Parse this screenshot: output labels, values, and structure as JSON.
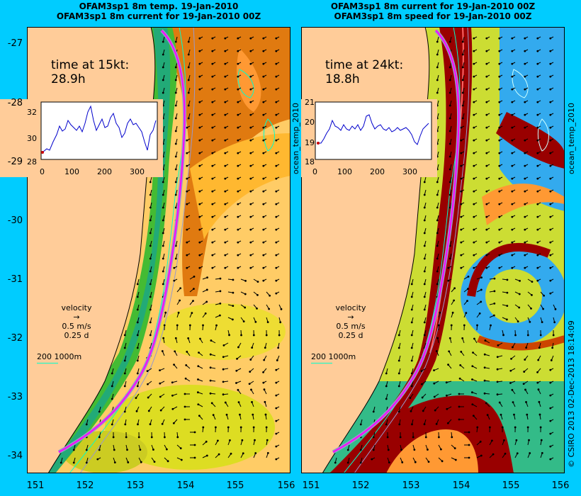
{
  "left_panel": {
    "title_line1": "OFAM3sp1 8m temp. 19-Jan-2010",
    "title_line2": "OFAM3sp1 8m current for 19-Jan-2010 00Z",
    "time_label": "time at 15kt:",
    "time_value": "28.9h",
    "inset": {
      "y_ticks": [
        "32",
        "30",
        "28"
      ],
      "x_ticks": [
        "0",
        "100",
        "200",
        "300"
      ]
    },
    "velocity_label": "velocity",
    "velocity_scale": "0.5 m/s",
    "velocity_time": "0.25 d",
    "depth_contours": "200  1000m"
  },
  "right_panel": {
    "title_line1": "OFAM3sp1 8m current for 19-Jan-2010 00Z",
    "title_line2": "OFAM3sp1 8m speed for 19-Jan-2010 00Z",
    "time_label": "time at 24kt:",
    "time_value": "18.8h",
    "inset": {
      "y_ticks": [
        "21",
        "20",
        "19",
        "18"
      ],
      "x_ticks": [
        "0",
        "100",
        "200",
        "300"
      ]
    },
    "velocity_label": "velocity",
    "velocity_scale": "0.5 m/s",
    "velocity_time": "0.25 d",
    "depth_contours": "200  1000m"
  },
  "y_axis": [
    "-27",
    "-28",
    "-29",
    "-30",
    "-31",
    "-32",
    "-33",
    "-34"
  ],
  "x_axis": [
    "151",
    "152",
    "153",
    "154",
    "155",
    "156"
  ],
  "side_label_middle": "ocean_temp_2010",
  "side_label_right": "ocean_temp_2010",
  "credit": "© CSIRO 2013   02-Dec-2013 18:14:09",
  "colors": {
    "background": "#00ccff",
    "land": "#ffcc99",
    "route": "#ff00ff",
    "route_outline": "#9999cc"
  }
}
